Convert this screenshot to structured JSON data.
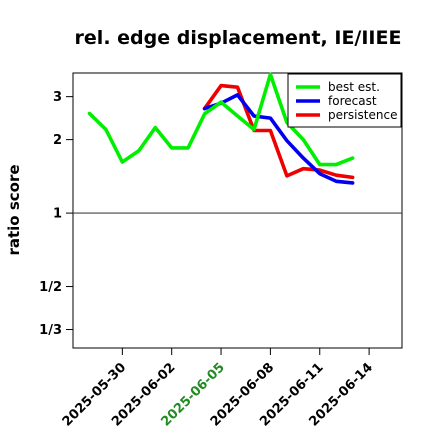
{
  "chart_data": {
    "type": "line",
    "title": "rel. edge displacement, IE/IIEE",
    "xlabel": "",
    "ylabel": "ratio score",
    "y_scale": "log",
    "ylim": [
      0.28,
      3.75
    ],
    "xlim": [
      "2025-05-27",
      "2025-06-16"
    ],
    "y_ticks": [
      {
        "value": 0.333333,
        "label": "1/3"
      },
      {
        "value": 0.5,
        "label": "1/2"
      },
      {
        "value": 1,
        "label": "1"
      },
      {
        "value": 2,
        "label": "2"
      },
      {
        "value": 3,
        "label": "3"
      }
    ],
    "x_ticks": [
      {
        "date": "2025-05-30",
        "label": "2025-05-30",
        "color": "#000000"
      },
      {
        "date": "2025-06-02",
        "label": "2025-06-02",
        "color": "#000000"
      },
      {
        "date": "2025-06-05",
        "label": "2025-06-05",
        "color": "#228B22"
      },
      {
        "date": "2025-06-08",
        "label": "2025-06-08",
        "color": "#000000"
      },
      {
        "date": "2025-06-11",
        "label": "2025-06-11",
        "color": "#000000"
      },
      {
        "date": "2025-06-14",
        "label": "2025-06-14",
        "color": "#000000"
      }
    ],
    "reference_line": 1,
    "legend_position": "top-right",
    "series": [
      {
        "name": "best est.",
        "color": "#00ee00",
        "points": [
          [
            "2025-05-28",
            2.56
          ],
          [
            "2025-05-29",
            2.2
          ],
          [
            "2025-05-30",
            1.62
          ],
          [
            "2025-05-31",
            1.8
          ],
          [
            "2025-06-01",
            2.24
          ],
          [
            "2025-06-02",
            1.85
          ],
          [
            "2025-06-03",
            1.85
          ],
          [
            "2025-06-04",
            2.55
          ],
          [
            "2025-06-05",
            2.85
          ],
          [
            "2025-06-06",
            2.5
          ],
          [
            "2025-06-07",
            2.2
          ],
          [
            "2025-06-08",
            3.7
          ],
          [
            "2025-06-09",
            2.35
          ],
          [
            "2025-06-10",
            2.0
          ],
          [
            "2025-06-11",
            1.58
          ],
          [
            "2025-06-12",
            1.58
          ],
          [
            "2025-06-13",
            1.68
          ]
        ]
      },
      {
        "name": "forecast",
        "color": "#0000ee",
        "points": [
          [
            "2025-06-04",
            2.68
          ],
          [
            "2025-06-05",
            2.82
          ],
          [
            "2025-06-06",
            3.05
          ],
          [
            "2025-06-07",
            2.5
          ],
          [
            "2025-06-08",
            2.45
          ],
          [
            "2025-06-09",
            1.98
          ],
          [
            "2025-06-10",
            1.68
          ],
          [
            "2025-06-11",
            1.45
          ],
          [
            "2025-06-12",
            1.35
          ],
          [
            "2025-06-13",
            1.33
          ]
        ]
      },
      {
        "name": "persistence",
        "color": "#ee0000",
        "points": [
          [
            "2025-06-04",
            2.68
          ],
          [
            "2025-06-05",
            3.33
          ],
          [
            "2025-06-06",
            3.28
          ],
          [
            "2025-06-07",
            2.18
          ],
          [
            "2025-06-08",
            2.18
          ],
          [
            "2025-06-09",
            1.42
          ],
          [
            "2025-06-10",
            1.52
          ],
          [
            "2025-06-11",
            1.5
          ],
          [
            "2025-06-12",
            1.43
          ],
          [
            "2025-06-13",
            1.4
          ]
        ]
      }
    ]
  }
}
